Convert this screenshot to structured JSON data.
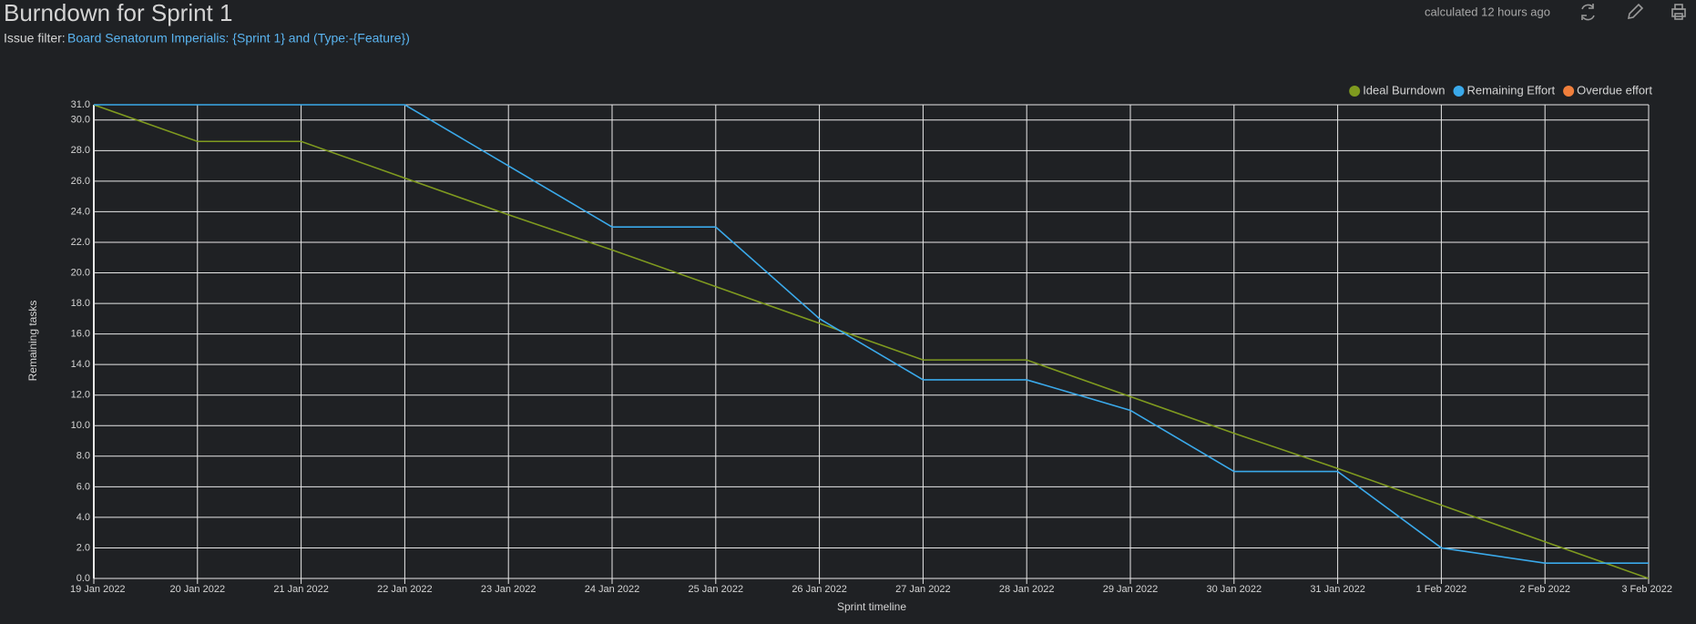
{
  "header": {
    "title": "Burndown for Sprint 1",
    "filter_label": "Issue filter:",
    "filter_link": "Board Senatorum Imperialis: {Sprint 1} and (Type:-{Feature})",
    "calculated": "calculated 12 hours ago"
  },
  "chart_data": {
    "type": "line",
    "xlabel": "Sprint timeline",
    "ylabel": "Remaining tasks",
    "categories": [
      "19 Jan 2022",
      "20 Jan 2022",
      "21 Jan 2022",
      "22 Jan 2022",
      "23 Jan 2022",
      "24 Jan 2022",
      "25 Jan 2022",
      "26 Jan 2022",
      "27 Jan 2022",
      "28 Jan 2022",
      "29 Jan 2022",
      "30 Jan 2022",
      "31 Jan 2022",
      "1 Feb 2022",
      "2 Feb 2022",
      "3 Feb 2022"
    ],
    "series": [
      {
        "name": "Ideal Burndown",
        "color": "#7f9a1f",
        "values": [
          31,
          28.6,
          28.6,
          26.2,
          23.8,
          21.5,
          19.1,
          16.7,
          14.3,
          14.3,
          11.9,
          9.5,
          7.2,
          4.8,
          2.4,
          0
        ]
      },
      {
        "name": "Remaining Effort",
        "color": "#3aa9ea",
        "values": [
          31,
          31,
          31,
          31,
          27,
          23,
          23,
          17,
          13,
          13,
          11,
          7,
          7,
          2,
          1,
          1
        ]
      },
      {
        "name": "Overdue effort",
        "color": "#f07f3c",
        "values": [
          null,
          null,
          null,
          null,
          null,
          null,
          null,
          null,
          null,
          null,
          null,
          null,
          null,
          null,
          null,
          null
        ]
      }
    ],
    "ylim": [
      0,
      31
    ],
    "yticks": [
      {
        "value": 0,
        "label": "0.0"
      },
      {
        "value": 2,
        "label": "2.0"
      },
      {
        "value": 4,
        "label": "4.0"
      },
      {
        "value": 6,
        "label": "6.0"
      },
      {
        "value": 8,
        "label": "8.0"
      },
      {
        "value": 10,
        "label": "10.0"
      },
      {
        "value": 12,
        "label": "12.0"
      },
      {
        "value": 14,
        "label": "14.0"
      },
      {
        "value": 16,
        "label": "16.0"
      },
      {
        "value": 18,
        "label": "18.0"
      },
      {
        "value": 20,
        "label": "20.0"
      },
      {
        "value": 22,
        "label": "22.0"
      },
      {
        "value": 24,
        "label": "24.0"
      },
      {
        "value": 26,
        "label": "26.0"
      },
      {
        "value": 28,
        "label": "28.0"
      },
      {
        "value": 30,
        "label": "30.0"
      },
      {
        "value": 31,
        "label": "31.0"
      }
    ],
    "grid": true,
    "legend": "top-right"
  }
}
